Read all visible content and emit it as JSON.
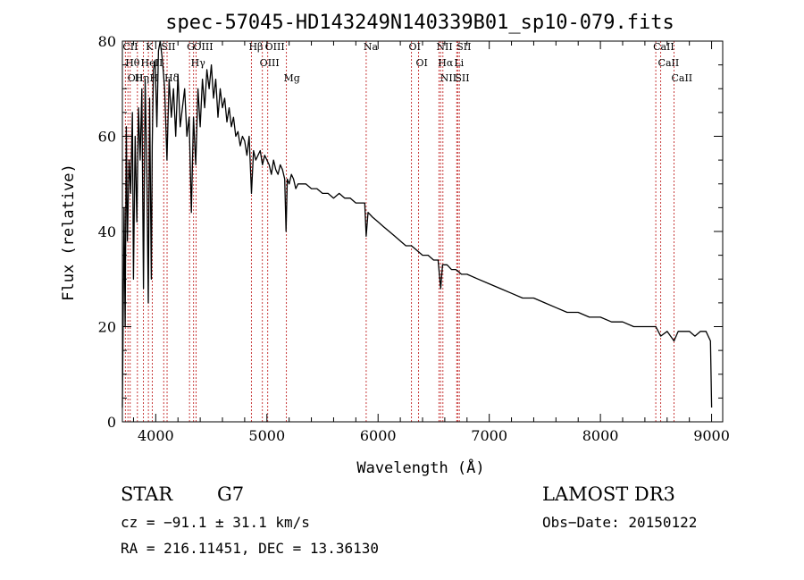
{
  "chart_data": {
    "type": "line",
    "title": "spec-57045-HD143249N140339B01_sp10-079.fits",
    "xlabel": "Wavelength (Å)",
    "ylabel": "Flux (relative)",
    "xlim": [
      3700,
      9100
    ],
    "ylim": [
      0,
      80
    ],
    "xticks": [
      4000,
      5000,
      6000,
      7000,
      8000,
      9000
    ],
    "yticks": [
      0,
      20,
      40,
      60,
      80
    ],
    "xtick_labels": [
      "4000",
      "5000",
      "6000",
      "7000",
      "8000",
      "9000"
    ],
    "ytick_labels": [
      "0",
      "20",
      "40",
      "60",
      "80"
    ],
    "series": [
      {
        "name": "spectrum",
        "x": [
          3700,
          3715,
          3725,
          3735,
          3745,
          3760,
          3775,
          3790,
          3800,
          3815,
          3830,
          3845,
          3860,
          3875,
          3890,
          3905,
          3920,
          3933,
          3945,
          3960,
          3968,
          3980,
          3995,
          4010,
          4025,
          4040,
          4060,
          4080,
          4101,
          4120,
          4140,
          4160,
          4180,
          4200,
          4220,
          4240,
          4260,
          4280,
          4300,
          4320,
          4340,
          4360,
          4380,
          4400,
          4420,
          4440,
          4460,
          4480,
          4500,
          4520,
          4540,
          4560,
          4580,
          4600,
          4620,
          4640,
          4660,
          4680,
          4700,
          4720,
          4740,
          4760,
          4780,
          4800,
          4820,
          4840,
          4861,
          4880,
          4900,
          4920,
          4940,
          4960,
          4980,
          5000,
          5020,
          5040,
          5060,
          5080,
          5100,
          5120,
          5140,
          5160,
          5172,
          5183,
          5200,
          5220,
          5240,
          5260,
          5280,
          5300,
          5350,
          5400,
          5450,
          5500,
          5550,
          5600,
          5650,
          5700,
          5750,
          5800,
          5850,
          5880,
          5893,
          5910,
          5950,
          6000,
          6050,
          6100,
          6150,
          6200,
          6250,
          6300,
          6350,
          6400,
          6450,
          6500,
          6540,
          6563,
          6580,
          6620,
          6660,
          6700,
          6750,
          6800,
          6900,
          7000,
          7100,
          7200,
          7300,
          7400,
          7500,
          7600,
          7700,
          7800,
          7900,
          8000,
          8100,
          8200,
          8300,
          8400,
          8498,
          8542,
          8600,
          8662,
          8700,
          8750,
          8800,
          8850,
          8900,
          8950,
          8990,
          9000
        ],
        "y": [
          3,
          45,
          20,
          62,
          38,
          55,
          48,
          65,
          30,
          60,
          42,
          66,
          55,
          70,
          28,
          72,
          52,
          25,
          68,
          30,
          58,
          74,
          76,
          62,
          78,
          80,
          76,
          70,
          55,
          72,
          64,
          70,
          60,
          73,
          62,
          66,
          70,
          60,
          64,
          44,
          64,
          54,
          70,
          62,
          72,
          66,
          74,
          70,
          75,
          68,
          72,
          64,
          70,
          66,
          68,
          63,
          66,
          62,
          64,
          60,
          61,
          58,
          60,
          59,
          56,
          60,
          48,
          57,
          55,
          56,
          57,
          54,
          56,
          55,
          54,
          52,
          55,
          53,
          52,
          54,
          53,
          51,
          40,
          51,
          50,
          52,
          51,
          49,
          50,
          50,
          50,
          49,
          49,
          48,
          48,
          47,
          48,
          47,
          47,
          46,
          46,
          46,
          39,
          44,
          43,
          42,
          41,
          40,
          39,
          38,
          37,
          37,
          36,
          35,
          35,
          34,
          34,
          28,
          33,
          33,
          32,
          32,
          31,
          31,
          30,
          29,
          28,
          27,
          26,
          26,
          25,
          24,
          23,
          23,
          22,
          22,
          21,
          21,
          20,
          20,
          20,
          18,
          19,
          17,
          19,
          19,
          19,
          18,
          19,
          19,
          17,
          3
        ]
      }
    ],
    "lines": [
      {
        "name": "CII",
        "x": 3727
      },
      {
        "name": "Hθ",
        "x": 3750
      },
      {
        "name": "OII",
        "x": 3770
      },
      {
        "name": "Hη",
        "x": 3835
      },
      {
        "name": "HeII",
        "x": 3889
      },
      {
        "name": "K",
        "x": 3934
      },
      {
        "name": "H",
        "x": 3969
      },
      {
        "name": "SII",
        "x": 4072
      },
      {
        "name": "Hδ",
        "x": 4102
      },
      {
        "name": "G",
        "x": 4304
      },
      {
        "name": "Hγ",
        "x": 4340
      },
      {
        "name": "OIII",
        "x": 4363
      },
      {
        "name": "Hβ",
        "x": 4861
      },
      {
        "name": "OIII",
        "x": 4959
      },
      {
        "name": "OIII",
        "x": 5007
      },
      {
        "name": "Mg",
        "x": 5175
      },
      {
        "name": "Na",
        "x": 5893
      },
      {
        "name": "OI",
        "x": 6300
      },
      {
        "name": "OI",
        "x": 6364
      },
      {
        "name": "NII",
        "x": 6548
      },
      {
        "name": "Hα",
        "x": 6563
      },
      {
        "name": "NII",
        "x": 6583
      },
      {
        "name": "Li",
        "x": 6708
      },
      {
        "name": "SII",
        "x": 6716
      },
      {
        "name": "SII",
        "x": 6731
      },
      {
        "name": "CaII",
        "x": 8498
      },
      {
        "name": "CaII",
        "x": 8542
      },
      {
        "name": "CaII",
        "x": 8662
      }
    ]
  },
  "info": {
    "class_label": "STAR",
    "subclass": "G7",
    "survey": "LAMOST DR3",
    "redshift": "cz = −91.1 ± 31.1 km/s",
    "obs_date": "Obs−Date: 20150122",
    "coords": "RA = 216.11451, DEC =  13.36130"
  },
  "colors": {
    "axis": "#000000",
    "spectrum": "#000000",
    "line_marker": "#c83c3c"
  }
}
